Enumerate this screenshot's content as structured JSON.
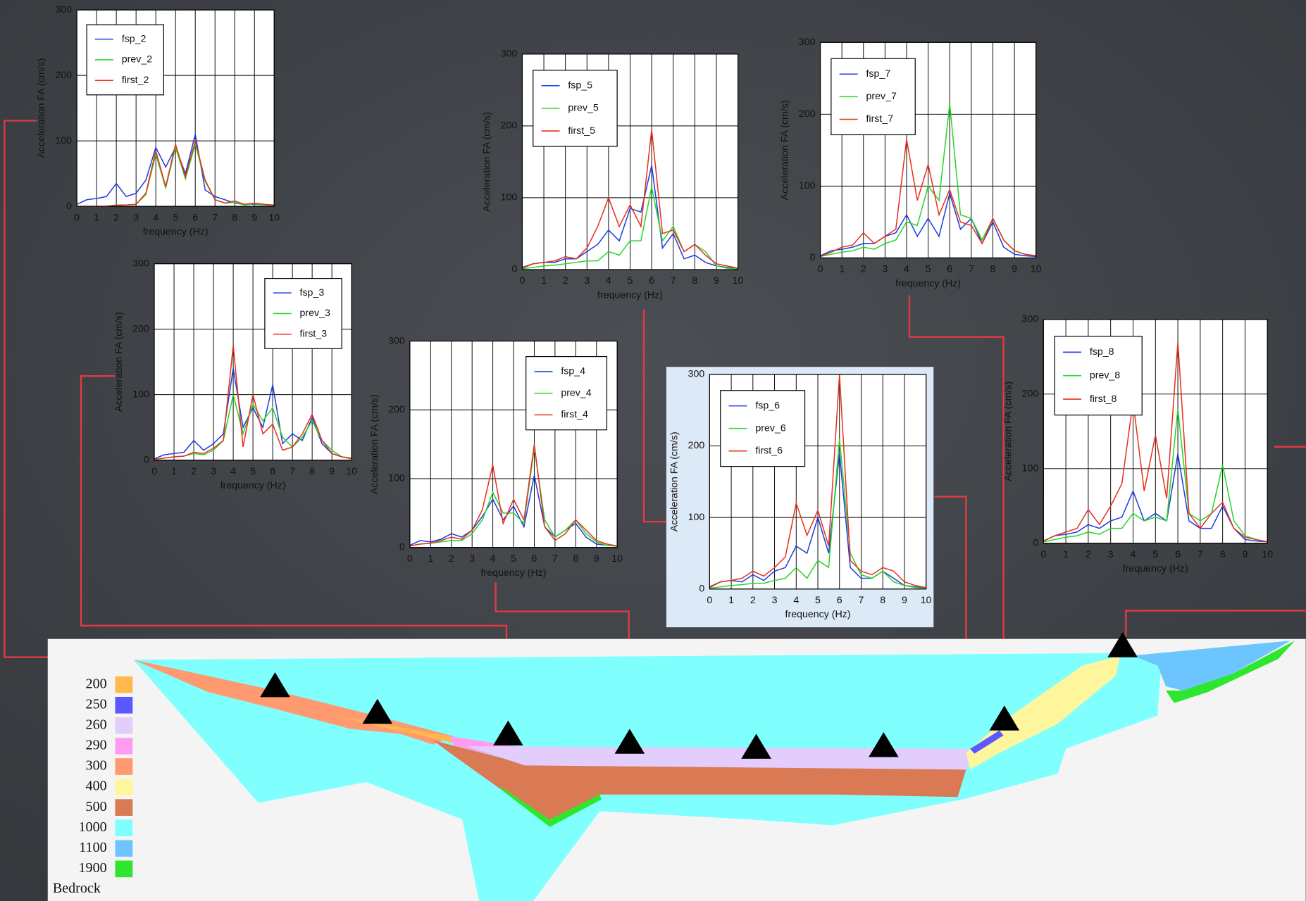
{
  "chart_data": [
    {
      "type": "line",
      "xlabel": "frequency (Hz)",
      "ylabel": "Acceleration FA (cm/s)",
      "xlim": [
        0,
        10
      ],
      "ylim": [
        0,
        300
      ],
      "xticks": [
        0,
        1,
        2,
        3,
        4,
        5,
        6,
        7,
        8,
        9,
        10
      ],
      "yticks": [
        0,
        100,
        200,
        300
      ],
      "grid": true,
      "legend": "upper left",
      "x": [
        0,
        0.5,
        1,
        1.5,
        2,
        2.5,
        3,
        3.5,
        4,
        4.5,
        5,
        5.5,
        6,
        6.5,
        7,
        7.5,
        8,
        8.5,
        9,
        9.5,
        10
      ],
      "series": [
        {
          "name": "fsp_2",
          "color": "#1f3fe0",
          "values": [
            3,
            10,
            12,
            15,
            35,
            15,
            20,
            40,
            90,
            60,
            90,
            50,
            110,
            25,
            15,
            10,
            5,
            3,
            3,
            2,
            2
          ]
        },
        {
          "name": "prev_2",
          "color": "#2ad62a",
          "values": [
            0,
            0,
            0,
            0,
            1,
            2,
            3,
            18,
            80,
            28,
            90,
            42,
            95,
            38,
            10,
            5,
            6,
            2,
            4,
            2,
            1
          ]
        },
        {
          "name": "first_2",
          "color": "#e8321e",
          "values": [
            0,
            0,
            0,
            0,
            2,
            2,
            3,
            20,
            85,
            30,
            95,
            45,
            100,
            40,
            10,
            5,
            8,
            3,
            5,
            3,
            2
          ]
        }
      ]
    },
    {
      "type": "line",
      "xlabel": "frequency (Hz)",
      "ylabel": "Acceleration FA (cm/s)",
      "xlim": [
        0,
        10
      ],
      "ylim": [
        0,
        300
      ],
      "xticks": [
        0,
        1,
        2,
        3,
        4,
        5,
        6,
        7,
        8,
        9,
        10
      ],
      "yticks": [
        0,
        100,
        200,
        300
      ],
      "grid": true,
      "legend": "upper right",
      "x": [
        0,
        0.5,
        1,
        1.5,
        2,
        2.5,
        3,
        3.5,
        4,
        4.5,
        5,
        5.5,
        6,
        6.5,
        7,
        7.5,
        8,
        8.5,
        9,
        9.5,
        10
      ],
      "series": [
        {
          "name": "fsp_3",
          "color": "#1f3fe0",
          "values": [
            2,
            8,
            10,
            12,
            30,
            15,
            25,
            40,
            140,
            50,
            80,
            50,
            115,
            25,
            40,
            30,
            65,
            25,
            10,
            5,
            3
          ]
        },
        {
          "name": "prev_3",
          "color": "#2ad62a",
          "values": [
            1,
            3,
            5,
            6,
            10,
            8,
            15,
            30,
            100,
            40,
            85,
            60,
            80,
            35,
            20,
            35,
            60,
            30,
            15,
            5,
            3
          ]
        },
        {
          "name": "first_3",
          "color": "#e8321e",
          "values": [
            1,
            3,
            5,
            6,
            12,
            10,
            18,
            30,
            175,
            20,
            100,
            40,
            55,
            15,
            20,
            40,
            70,
            30,
            10,
            5,
            2
          ]
        }
      ]
    },
    {
      "type": "line",
      "xlabel": "frequency (Hz)",
      "ylabel": "Acceleration FA (cm/s)",
      "xlim": [
        0,
        10
      ],
      "ylim": [
        0,
        300
      ],
      "xticks": [
        0,
        1,
        2,
        3,
        4,
        5,
        6,
        7,
        8,
        9,
        10
      ],
      "yticks": [
        0,
        100,
        200,
        300
      ],
      "grid": true,
      "legend": "upper right",
      "x": [
        0,
        0.5,
        1,
        1.5,
        2,
        2.5,
        3,
        3.5,
        4,
        4.5,
        5,
        5.5,
        6,
        6.5,
        7,
        7.5,
        8,
        8.5,
        9,
        9.5,
        10
      ],
      "series": [
        {
          "name": "fsp_4",
          "color": "#1f3fe0",
          "values": [
            3,
            10,
            8,
            12,
            20,
            15,
            25,
            45,
            70,
            40,
            60,
            30,
            105,
            30,
            15,
            25,
            35,
            15,
            5,
            3,
            2
          ]
        },
        {
          "name": "prev_4",
          "color": "#2ad62a",
          "values": [
            2,
            5,
            6,
            8,
            10,
            10,
            20,
            40,
            80,
            50,
            50,
            35,
            145,
            40,
            15,
            25,
            40,
            20,
            8,
            3,
            2
          ]
        },
        {
          "name": "first_4",
          "color": "#e8321e",
          "values": [
            2,
            5,
            6,
            10,
            15,
            12,
            25,
            55,
            120,
            35,
            70,
            40,
            150,
            30,
            10,
            20,
            40,
            25,
            10,
            5,
            2
          ]
        }
      ]
    },
    {
      "type": "line",
      "xlabel": "frequency (Hz)",
      "ylabel": "Acceleration FA (cm/s)",
      "xlim": [
        0,
        10
      ],
      "ylim": [
        0,
        300
      ],
      "xticks": [
        0,
        1,
        2,
        3,
        4,
        5,
        6,
        7,
        8,
        9,
        10
      ],
      "yticks": [
        0,
        100,
        200,
        300
      ],
      "grid": true,
      "legend": "upper left",
      "x": [
        0,
        0.5,
        1,
        1.5,
        2,
        2.5,
        3,
        3.5,
        4,
        4.5,
        5,
        5.5,
        6,
        6.5,
        7,
        7.5,
        8,
        8.5,
        9,
        9.5,
        10
      ],
      "series": [
        {
          "name": "fsp_5",
          "color": "#1f3fe0",
          "values": [
            3,
            8,
            10,
            10,
            15,
            15,
            25,
            35,
            55,
            40,
            85,
            80,
            145,
            30,
            50,
            15,
            20,
            10,
            5,
            3,
            2
          ]
        },
        {
          "name": "prev_5",
          "color": "#2ad62a",
          "values": [
            1,
            3,
            5,
            6,
            8,
            10,
            12,
            12,
            25,
            20,
            40,
            40,
            115,
            40,
            60,
            25,
            35,
            25,
            5,
            2,
            1
          ]
        },
        {
          "name": "first_5",
          "color": "#e8321e",
          "values": [
            2,
            8,
            10,
            12,
            18,
            15,
            30,
            60,
            100,
            60,
            90,
            60,
            195,
            50,
            55,
            25,
            35,
            20,
            8,
            5,
            2
          ]
        }
      ]
    },
    {
      "type": "line",
      "xlabel": "frequency (Hz)",
      "ylabel": "Acceleration FA (cm/s)",
      "xlim": [
        0,
        10
      ],
      "ylim": [
        0,
        300
      ],
      "xticks": [
        0,
        1,
        2,
        3,
        4,
        5,
        6,
        7,
        8,
        9,
        10
      ],
      "yticks": [
        0,
        100,
        200,
        300
      ],
      "grid": true,
      "legend": "upper left",
      "x": [
        0,
        0.5,
        1,
        1.5,
        2,
        2.5,
        3,
        3.5,
        4,
        4.5,
        5,
        5.5,
        6,
        6.5,
        7,
        7.5,
        8,
        8.5,
        9,
        9.5,
        10
      ],
      "series": [
        {
          "name": "fsp_6",
          "color": "#1f3fe0",
          "values": [
            3,
            10,
            12,
            10,
            20,
            12,
            25,
            30,
            60,
            50,
            100,
            50,
            190,
            30,
            15,
            15,
            25,
            15,
            5,
            3,
            2
          ]
        },
        {
          "name": "prev_6",
          "color": "#2ad62a",
          "values": [
            1,
            3,
            5,
            6,
            8,
            8,
            12,
            15,
            30,
            15,
            40,
            30,
            210,
            50,
            20,
            15,
            25,
            10,
            5,
            2,
            1
          ]
        },
        {
          "name": "first_6",
          "color": "#e8321e",
          "values": [
            2,
            10,
            12,
            15,
            25,
            18,
            30,
            45,
            120,
            75,
            110,
            60,
            300,
            40,
            25,
            20,
            30,
            25,
            10,
            5,
            2
          ]
        }
      ]
    },
    {
      "type": "line",
      "xlabel": "frequency (Hz)",
      "ylabel": "Acceleration FA (cm/s)",
      "xlim": [
        0,
        10
      ],
      "ylim": [
        0,
        300
      ],
      "xticks": [
        0,
        1,
        2,
        3,
        4,
        5,
        6,
        7,
        8,
        9,
        10
      ],
      "yticks": [
        0,
        100,
        200,
        300
      ],
      "grid": true,
      "legend": "upper left",
      "x": [
        0,
        0.5,
        1,
        1.5,
        2,
        2.5,
        3,
        3.5,
        4,
        4.5,
        5,
        5.5,
        6,
        6.5,
        7,
        7.5,
        8,
        8.5,
        9,
        9.5,
        10
      ],
      "series": [
        {
          "name": "fsp_7",
          "color": "#1f3fe0",
          "values": [
            3,
            10,
            12,
            15,
            20,
            20,
            30,
            35,
            60,
            30,
            55,
            30,
            90,
            40,
            55,
            20,
            50,
            15,
            5,
            3,
            2
          ]
        },
        {
          "name": "prev_7",
          "color": "#2ad62a",
          "values": [
            2,
            5,
            8,
            10,
            15,
            12,
            20,
            25,
            50,
            45,
            100,
            80,
            215,
            60,
            55,
            25,
            55,
            25,
            10,
            5,
            3
          ]
        },
        {
          "name": "first_7",
          "color": "#e8321e",
          "values": [
            2,
            8,
            15,
            18,
            35,
            20,
            30,
            40,
            165,
            80,
            130,
            60,
            95,
            50,
            45,
            20,
            55,
            25,
            10,
            5,
            3
          ]
        }
      ]
    },
    {
      "type": "line",
      "xlabel": "frequency (Hz)",
      "ylabel": "Acceleration FA (cm/s)",
      "xlim": [
        0,
        10
      ],
      "ylim": [
        0,
        300
      ],
      "xticks": [
        0,
        1,
        2,
        3,
        4,
        5,
        6,
        7,
        8,
        9,
        10
      ],
      "yticks": [
        0,
        100,
        200,
        300
      ],
      "grid": true,
      "legend": "upper left",
      "x": [
        0,
        0.5,
        1,
        1.5,
        2,
        2.5,
        3,
        3.5,
        4,
        4.5,
        5,
        5.5,
        6,
        6.5,
        7,
        7.5,
        8,
        8.5,
        9,
        9.5,
        10
      ],
      "series": [
        {
          "name": "fsp_8",
          "color": "#1f3fe0",
          "values": [
            3,
            10,
            12,
            15,
            25,
            20,
            30,
            35,
            70,
            30,
            40,
            30,
            120,
            30,
            20,
            20,
            50,
            20,
            5,
            3,
            2
          ]
        },
        {
          "name": "prev_8",
          "color": "#2ad62a",
          "values": [
            2,
            5,
            8,
            10,
            15,
            12,
            20,
            20,
            40,
            30,
            35,
            30,
            180,
            40,
            30,
            40,
            105,
            30,
            10,
            5,
            2
          ]
        },
        {
          "name": "first_8",
          "color": "#e8321e",
          "values": [
            3,
            10,
            15,
            20,
            45,
            25,
            50,
            80,
            190,
            70,
            145,
            60,
            270,
            40,
            20,
            40,
            55,
            20,
            8,
            5,
            2
          ]
        }
      ]
    }
  ],
  "cross_section": {
    "legend": [
      {
        "label": "200",
        "color": "#ffb84d"
      },
      {
        "label": "250",
        "color": "#5b58ff"
      },
      {
        "label": "260",
        "color": "#e2cdfd"
      },
      {
        "label": "290",
        "color": "#ff9cf2"
      },
      {
        "label": "300",
        "color": "#ff9a70"
      },
      {
        "label": "400",
        "color": "#fff59c"
      },
      {
        "label": "500",
        "color": "#d97a55"
      },
      {
        "label": "1000",
        "color": "#80ffff"
      },
      {
        "label": "1100",
        "color": "#6cc5ff"
      },
      {
        "label": "1900",
        "color": "#2de62d"
      },
      {
        "label": "Bedrock"
      }
    ]
  }
}
